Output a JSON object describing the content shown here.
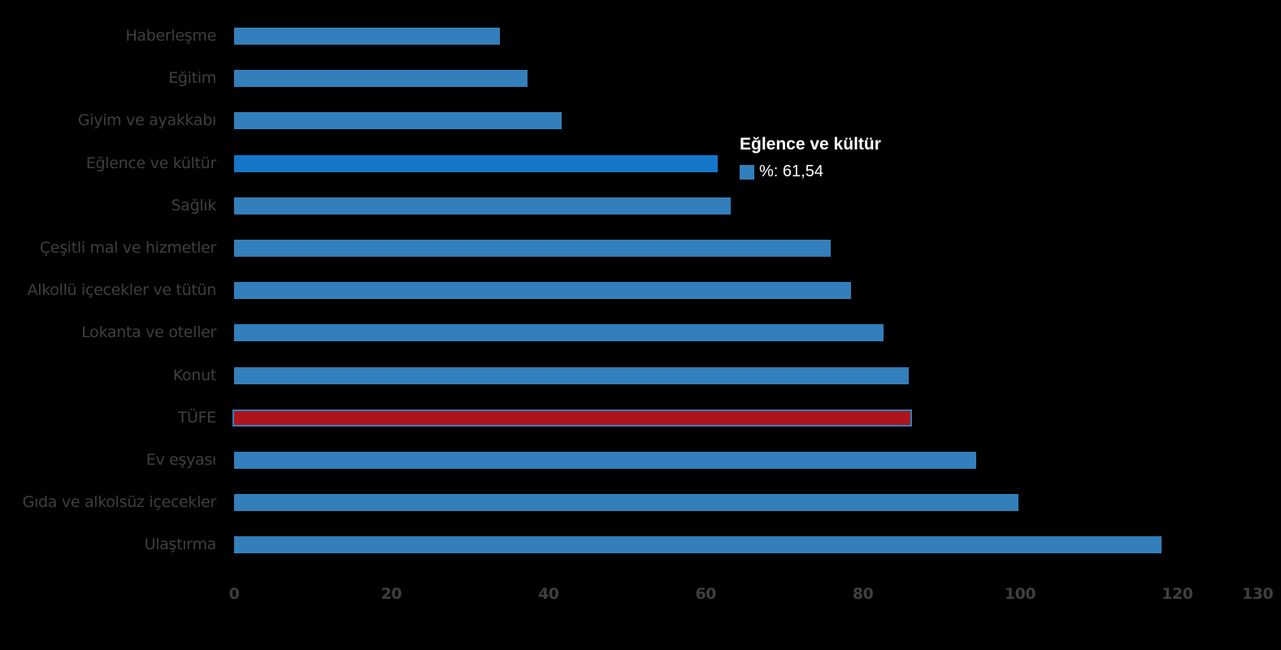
{
  "chart_data": {
    "type": "bar",
    "orientation": "horizontal",
    "title": "",
    "xlabel": "",
    "ylabel": "",
    "xlim": [
      0,
      130
    ],
    "x_ticks": [
      "0",
      "20",
      "40",
      "60",
      "80",
      "100",
      "120",
      "130"
    ],
    "grid": false,
    "legend": "none",
    "categories": [
      "Haberleşme",
      "Eğitim",
      "Giyim ve ayakkabı",
      "Eğlence ve kültür",
      "Sağlık",
      "Çeşitli mal ve hizmetler",
      "Alkollü içecekler ve tütün",
      "Lokanta ve oteller",
      "Konut",
      "TÜFE",
      "Ev eşyası",
      "Gıda ve alkolsüz içecekler",
      "Ulaştırma"
    ],
    "series": [
      {
        "name": "%",
        "values": [
          33.8,
          37.3,
          41.7,
          61.54,
          63.2,
          75.9,
          78.5,
          82.6,
          85.8,
          86.0,
          94.4,
          99.8,
          118.0
        ]
      }
    ],
    "colors": {
      "default": "#337fbb",
      "hover": "#1477c9",
      "highlight": "#ae141c"
    },
    "highlighted_category": "TÜFE",
    "hovered_category": "Eğlence ve kültür"
  },
  "tooltip": {
    "title": "Eğlence ve kültür",
    "row": "%: 61,54"
  }
}
